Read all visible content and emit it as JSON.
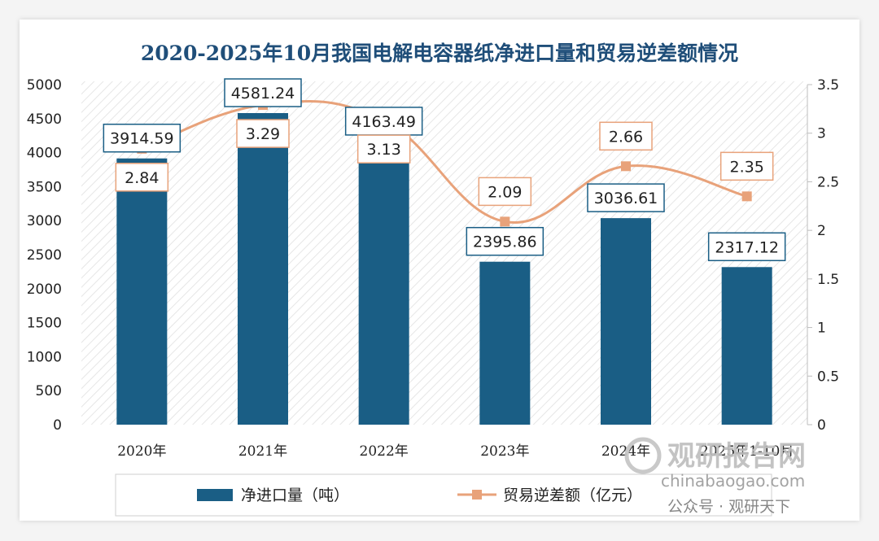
{
  "chart_data": {
    "type": "bar+line",
    "title": "2020-2025年10月我国电解电容器纸净进口量和贸易逆差额情况",
    "categories": [
      "2020年",
      "2021年",
      "2022年",
      "2023年",
      "2024年",
      "2025年1-10月"
    ],
    "series": [
      {
        "name": "净进口量（吨）",
        "type": "bar",
        "axis": "left",
        "color": "#1a5e85",
        "values": [
          3914.59,
          4581.24,
          4163.49,
          2395.86,
          3036.61,
          2317.12
        ],
        "labels": [
          "3914.59",
          "4581.24",
          "4163.49",
          "2395.86",
          "3036.61",
          "2317.12"
        ]
      },
      {
        "name": "贸易逆差额（亿元）",
        "type": "line",
        "axis": "right",
        "color": "#e8a27a",
        "values": [
          2.84,
          3.29,
          3.13,
          2.09,
          2.66,
          2.35
        ],
        "labels": [
          "2.84",
          "3.29",
          "3.13",
          "2.09",
          "2.66",
          "2.35"
        ]
      }
    ],
    "y_left": {
      "min": 0,
      "max": 5000,
      "ticks": [
        "0",
        "500",
        "1000",
        "1500",
        "2000",
        "2500",
        "3000",
        "3500",
        "4000",
        "4500",
        "5000"
      ]
    },
    "y_right": {
      "min": 0,
      "max": 3.5,
      "ticks": [
        "0",
        "0.5",
        "1",
        "1.5",
        "2",
        "2.5",
        "3",
        "3.5"
      ]
    },
    "legend": {
      "position": "bottom",
      "items": [
        "净进口量（吨）",
        "贸易逆差额（亿元）"
      ]
    },
    "grid": false
  },
  "watermark": {
    "brand": "观研报告网",
    "site": "chinabaogao.com",
    "footer": "公众号 · 观研天下"
  }
}
